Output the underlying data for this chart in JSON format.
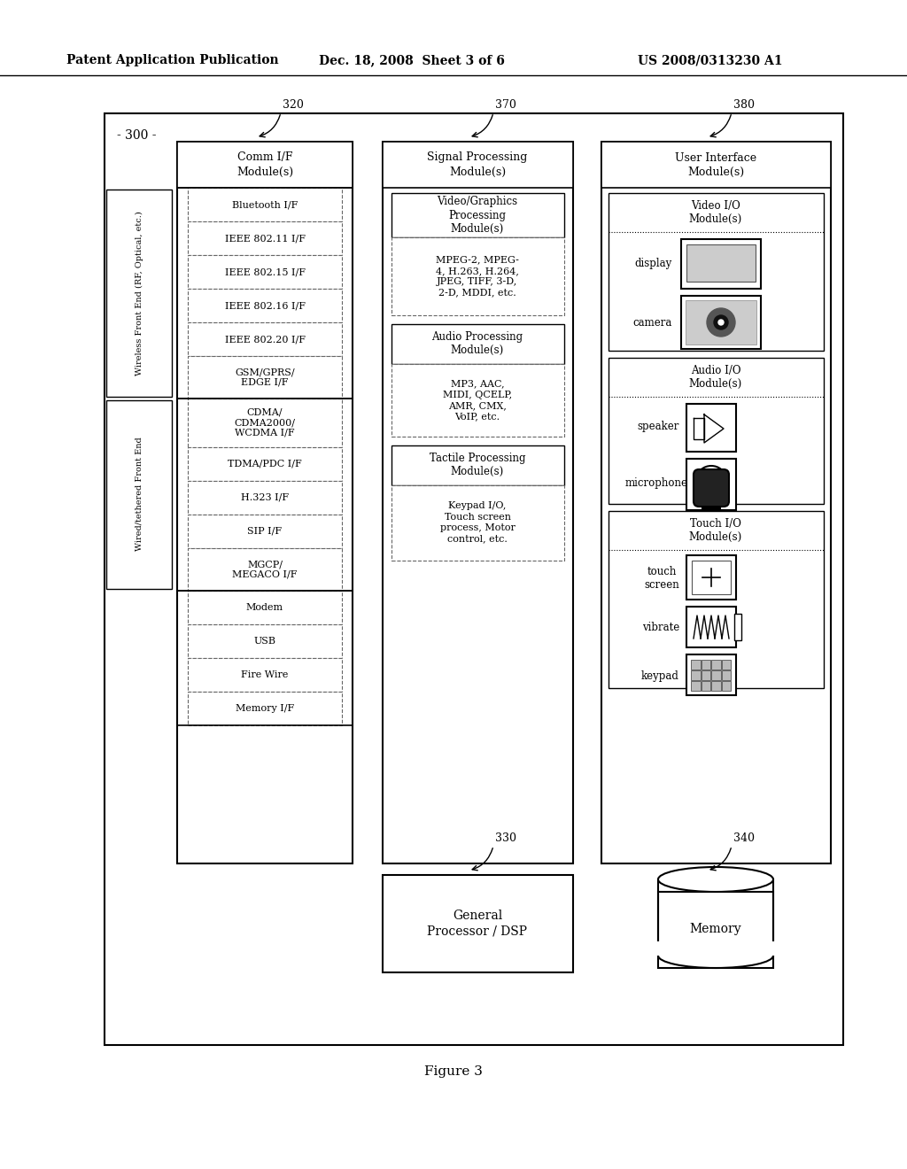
{
  "header_left": "Patent Application Publication",
  "header_mid": "Dec. 18, 2008  Sheet 3 of 6",
  "header_right": "US 2008/0313230 A1",
  "figure_label": "Figure 3",
  "main_label": "- 300 -",
  "ref_320": "320",
  "ref_370": "370",
  "ref_380": "380",
  "ref_330": "330",
  "ref_340": "340",
  "comm_title": "Comm I/F\nModule(s)",
  "signal_title": "Signal Processing\nModule(s)",
  "ui_title": "User Interface\nModule(s)",
  "wireless_label": "Wireless Front End (RF, Optical, etc.)",
  "wired_label": "Wired/tethered Front End",
  "gp_label": "General\nProcessor / DSP",
  "mem_label": "Memory",
  "bg_color": "#ffffff",
  "text_color": "#000000"
}
